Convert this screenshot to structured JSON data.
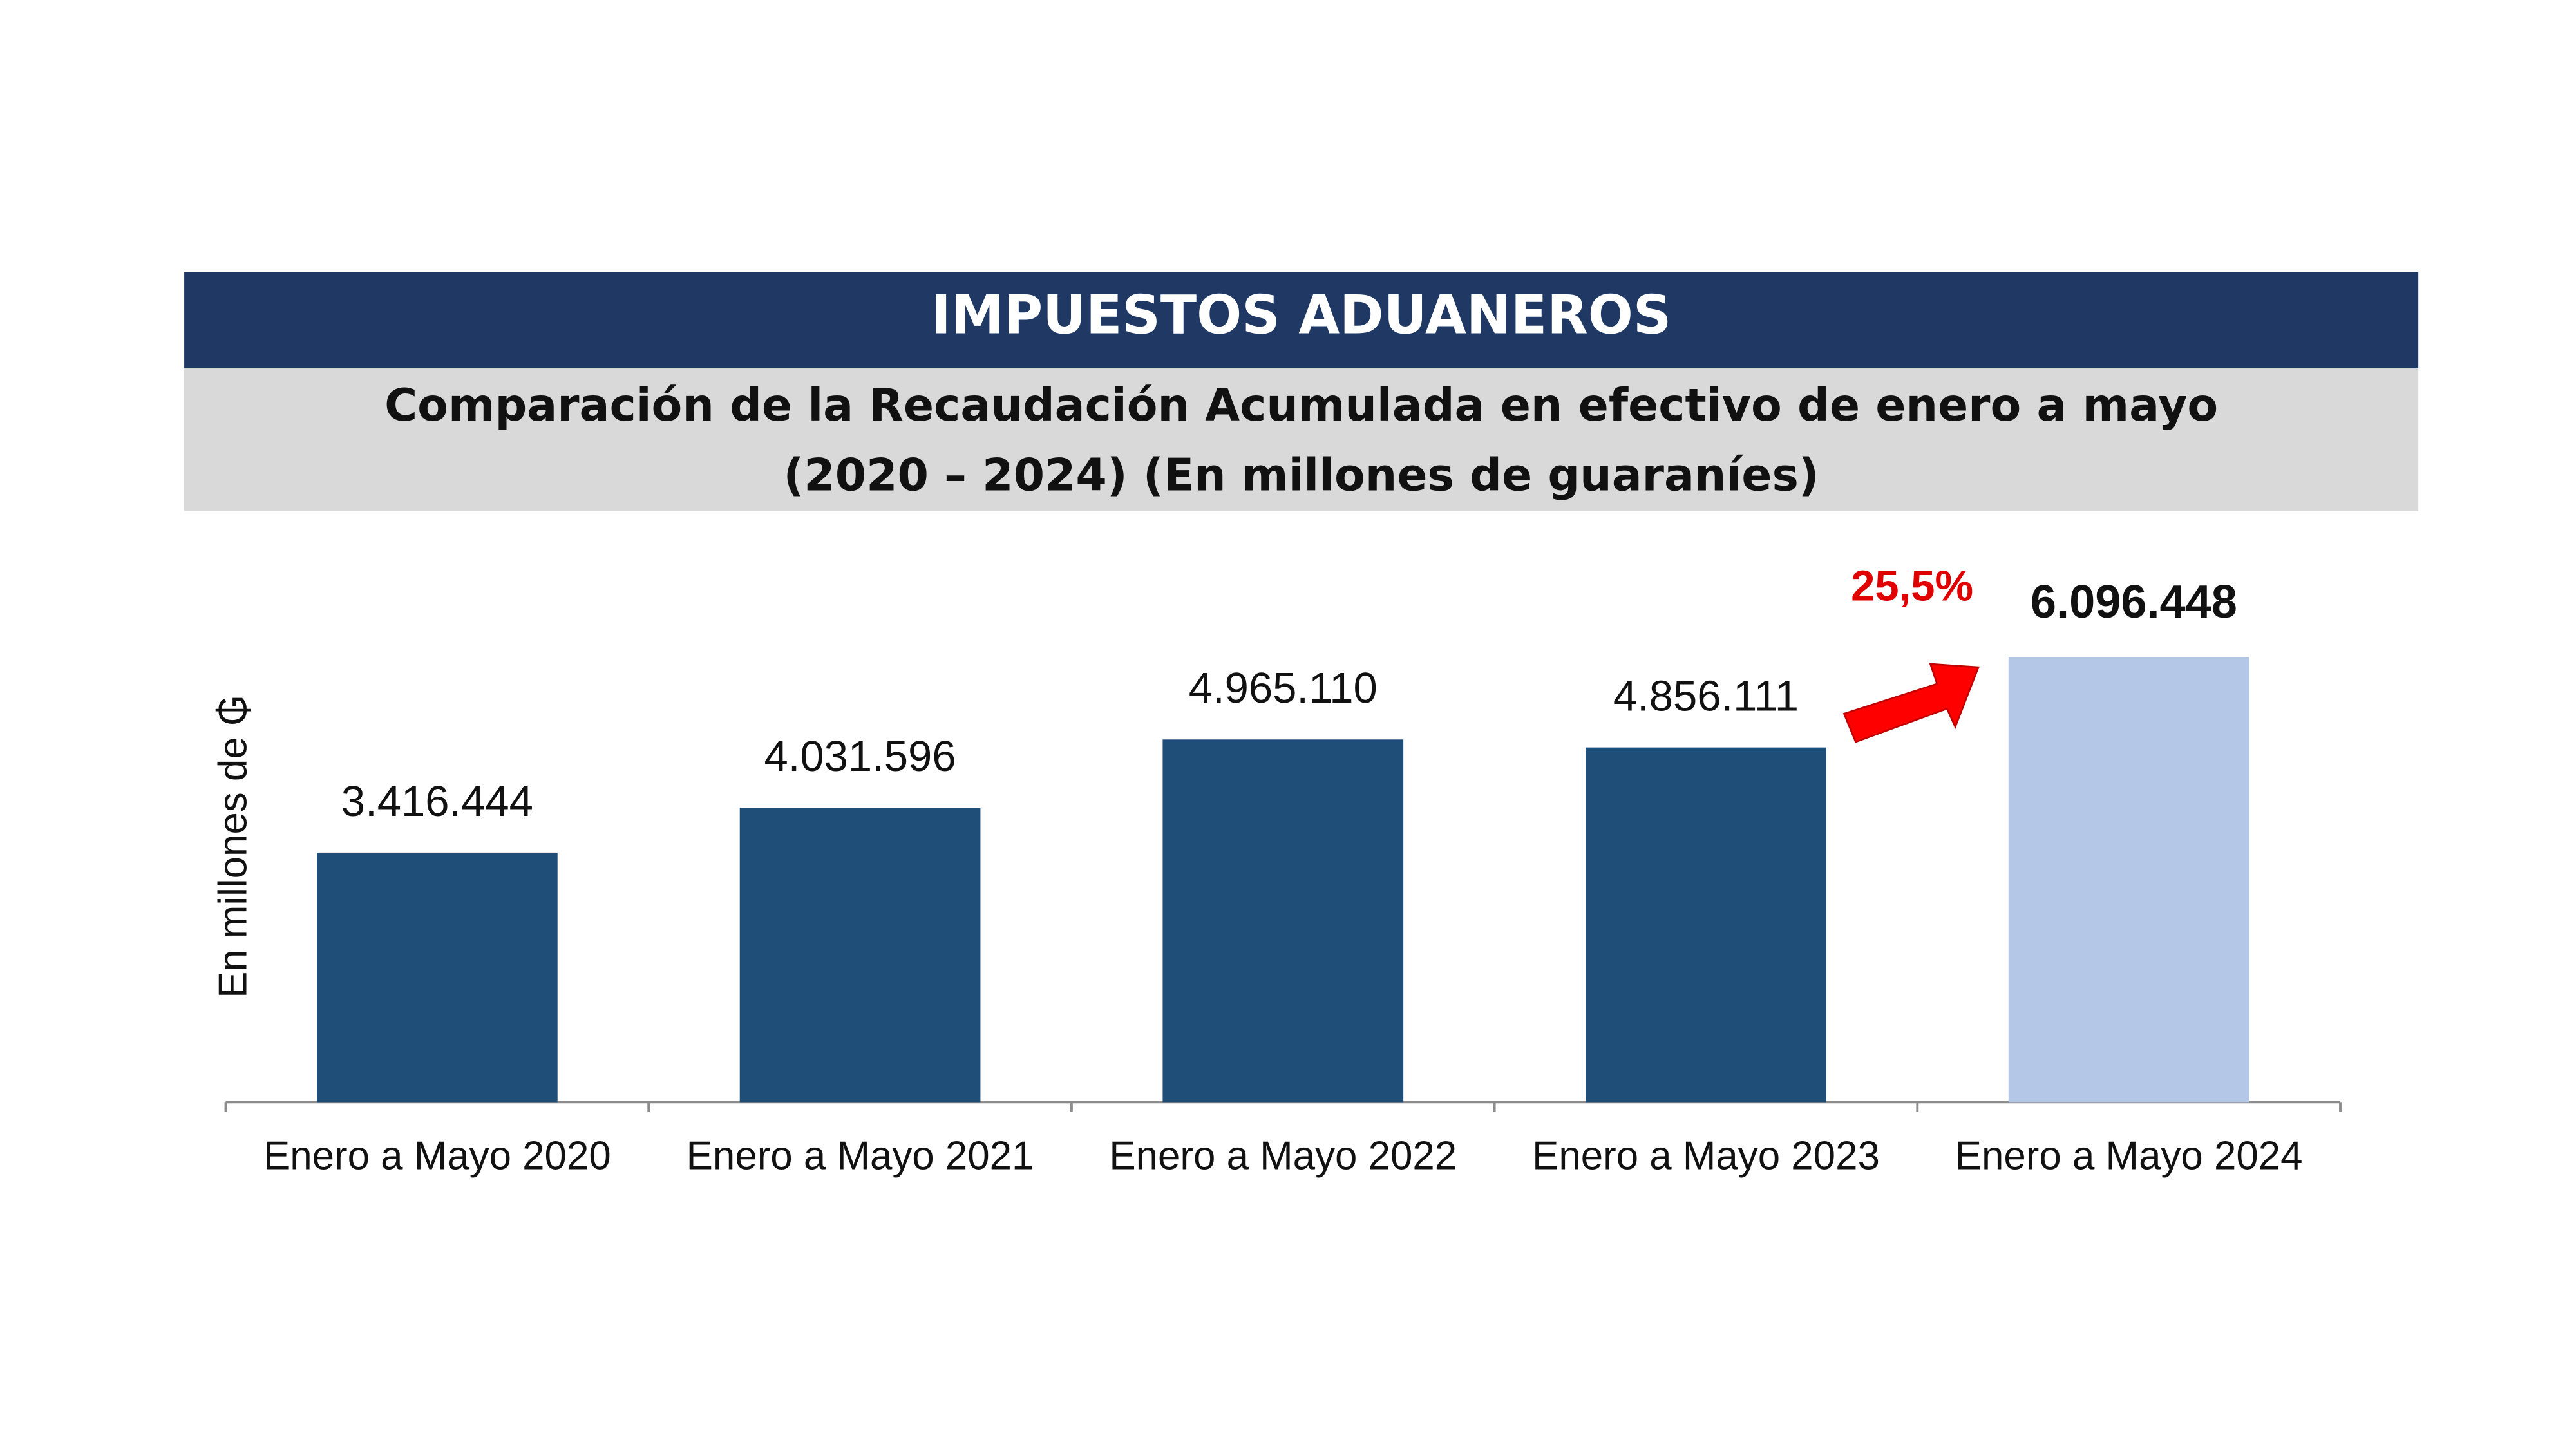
{
  "chart_data": {
    "type": "bar",
    "title": "IMPUESTOS ADUANEROS",
    "subtitle": [
      "Comparación de la Recaudación Acumulada en efectivo de enero a mayo",
      "(2020 – 2024) (En millones de guaraníes)"
    ],
    "y_label": "En millones de ₲",
    "annotation": "25,5%",
    "categories": [
      "Enero a Mayo 2020",
      "Enero a Mayo 2021",
      "Enero a Mayo 2022",
      "Enero a Mayo 2023",
      "Enero a Mayo 2024"
    ],
    "values": [
      3416444,
      4031596,
      4965110,
      4856111,
      6096448
    ],
    "value_labels": [
      "3.416.444",
      "4.031.596",
      "4.965.110",
      "4.856.111",
      "6.096.448"
    ],
    "colors": [
      "#1f4e79",
      "#1f4e79",
      "#1f4e79",
      "#1f4e79",
      "#b4c7e7"
    ],
    "ylim": [
      0,
      7000000
    ]
  }
}
